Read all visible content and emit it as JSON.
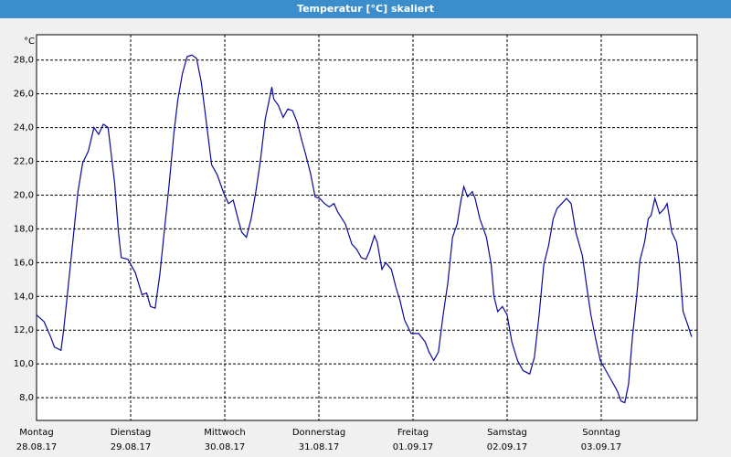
{
  "chart_data": {
    "type": "line",
    "title": "Temperatur [°C] skaliert",
    "y_label": "°C",
    "xlim": [
      0,
      7
    ],
    "ylim": [
      6.65,
      29.5
    ],
    "xticks": [
      {
        "value": 0,
        "label": "Montag"
      },
      {
        "value": 1,
        "label": "Dienstag"
      },
      {
        "value": 2,
        "label": "Mittwoch"
      },
      {
        "value": 3,
        "label": "Donnerstag"
      },
      {
        "value": 4,
        "label": "Freitag"
      },
      {
        "value": 5,
        "label": "Samstag"
      },
      {
        "value": 6,
        "label": "Sonntag"
      }
    ],
    "xtick_dates": [
      "28.08.17",
      "29.08.17",
      "30.08.17",
      "31.08.17",
      "01.09.17",
      "02.09.17",
      "03.09.17"
    ],
    "yticks": [
      {
        "value": 8,
        "label": "8,0"
      },
      {
        "value": 10,
        "label": "10,0"
      },
      {
        "value": 12,
        "label": "12,0"
      },
      {
        "value": 14,
        "label": "14,0"
      },
      {
        "value": 16,
        "label": "16,0"
      },
      {
        "value": 18,
        "label": "18,0"
      },
      {
        "value": 20,
        "label": "20,0"
      },
      {
        "value": 22,
        "label": "22,0"
      },
      {
        "value": 24,
        "label": "24,0"
      },
      {
        "value": 26,
        "label": "26,0"
      },
      {
        "value": 28,
        "label": "28,0"
      }
    ],
    "grid": true,
    "x": [
      0,
      0.08,
      0.15,
      0.19,
      0.26,
      0.29,
      0.37,
      0.44,
      0.49,
      0.55,
      0.61,
      0.66,
      0.71,
      0.76,
      0.83,
      0.87,
      0.9,
      0.97,
      1.05,
      1.12,
      1.17,
      1.21,
      1.26,
      1.31,
      1.36,
      1.41,
      1.46,
      1.5,
      1.55,
      1.6,
      1.65,
      1.7,
      1.75,
      1.8,
      1.86,
      1.92,
      1.99,
      2.04,
      2.09,
      2.14,
      2.18,
      2.23,
      2.28,
      2.33,
      2.38,
      2.43,
      2.5,
      2.52,
      2.57,
      2.62,
      2.67,
      2.72,
      2.77,
      2.82,
      2.86,
      2.91,
      2.96,
      3.01,
      3.06,
      3.11,
      3.16,
      3.2,
      3.28,
      3.35,
      3.4,
      3.45,
      3.5,
      3.54,
      3.59,
      3.62,
      3.67,
      3.71,
      3.77,
      3.82,
      3.86,
      3.91,
      3.98,
      4.06,
      4.13,
      4.17,
      4.22,
      4.27,
      4.32,
      4.37,
      4.42,
      4.47,
      4.51,
      4.54,
      4.58,
      4.63,
      4.66,
      4.71,
      4.78,
      4.83,
      4.86,
      4.9,
      4.95,
      5.0,
      5.05,
      5.11,
      5.17,
      5.24,
      5.29,
      5.34,
      5.39,
      5.44,
      5.49,
      5.53,
      5.58,
      5.63,
      5.68,
      5.73,
      5.8,
      5.84,
      5.89,
      5.94,
      5.99,
      6.05,
      6.1,
      6.17,
      6.21,
      6.25,
      6.29,
      6.33,
      6.38,
      6.41,
      6.46,
      6.5,
      6.53,
      6.57,
      6.62,
      6.67,
      6.7,
      6.75,
      6.8,
      6.83,
      6.87,
      6.92,
      6.96
    ],
    "series": [
      {
        "color": "#0a0a9a",
        "values": [
          12.9,
          12.5,
          11.6,
          11.0,
          10.8,
          12.1,
          16.4,
          20.2,
          21.9,
          22.6,
          24.0,
          23.6,
          24.2,
          24.0,
          20.7,
          17.8,
          16.3,
          16.2,
          15.4,
          14.1,
          14.2,
          13.4,
          13.3,
          15.3,
          18.0,
          20.7,
          23.7,
          25.6,
          27.2,
          28.2,
          28.3,
          28.1,
          26.7,
          24.5,
          21.8,
          21.2,
          20.1,
          19.5,
          19.7,
          18.6,
          17.8,
          17.5,
          18.6,
          20.2,
          22.1,
          24.5,
          26.4,
          25.7,
          25.3,
          24.6,
          25.1,
          25.0,
          24.3,
          23.2,
          22.4,
          21.3,
          19.9,
          19.8,
          19.5,
          19.3,
          19.5,
          19.0,
          18.3,
          17.1,
          16.8,
          16.3,
          16.2,
          16.7,
          17.6,
          17.2,
          15.6,
          16.0,
          15.6,
          14.5,
          13.8,
          12.6,
          11.8,
          11.8,
          11.3,
          10.7,
          10.2,
          10.7,
          12.9,
          14.8,
          17.5,
          18.3,
          19.7,
          20.5,
          19.9,
          20.2,
          19.8,
          18.6,
          17.5,
          15.9,
          14.0,
          13.1,
          13.4,
          12.9,
          11.3,
          10.2,
          9.6,
          9.4,
          10.4,
          12.9,
          15.9,
          17.0,
          18.6,
          19.2,
          19.5,
          19.8,
          19.5,
          17.8,
          16.4,
          14.8,
          12.9,
          11.5,
          10.2,
          9.6,
          9.1,
          8.4,
          7.8,
          7.7,
          8.8,
          11.5,
          14.2,
          16.1,
          17.2,
          18.6,
          18.8,
          19.8,
          18.9,
          19.2,
          19.5,
          17.8,
          17.2,
          15.9,
          13.1,
          12.3,
          11.6
        ]
      }
    ]
  }
}
